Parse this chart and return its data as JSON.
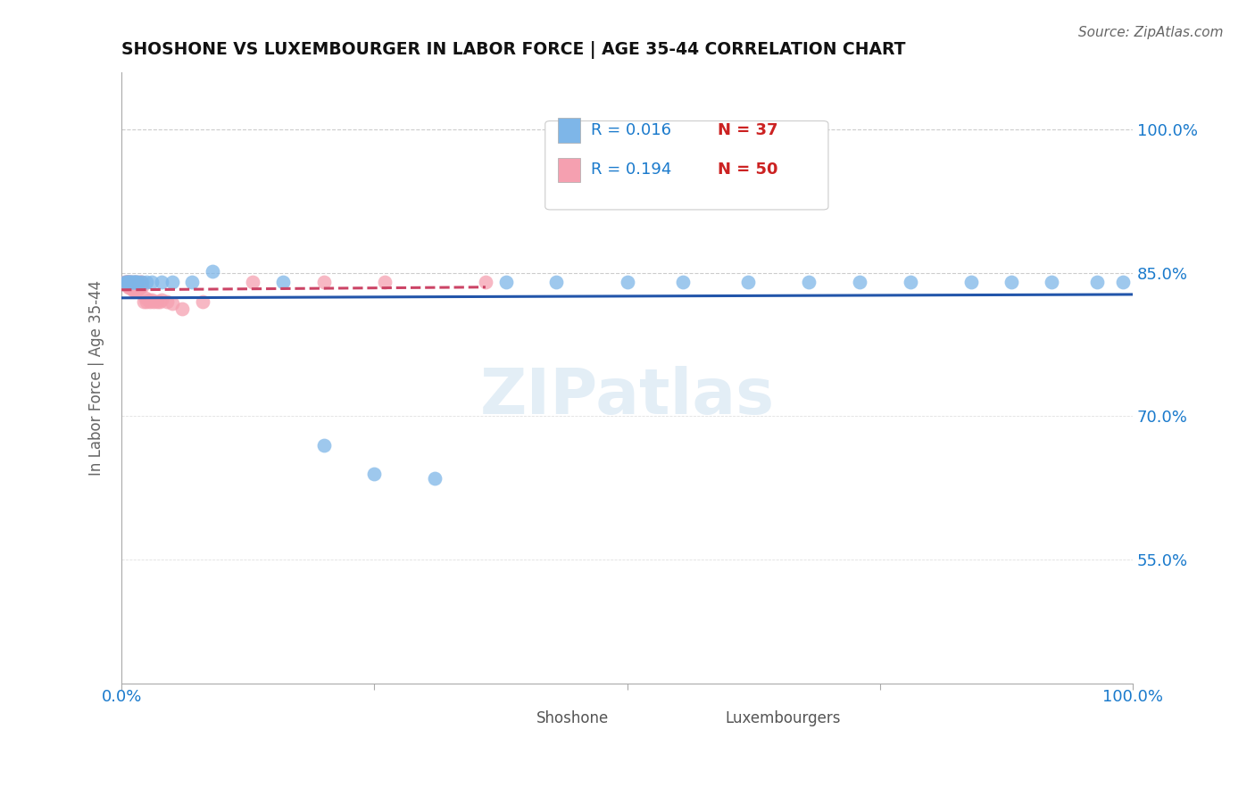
{
  "title": "SHOSHONE VS LUXEMBOURGER IN LABOR FORCE | AGE 35-44 CORRELATION CHART",
  "source_text": "Source: ZipAtlas.com",
  "ylabel": "In Labor Force | Age 35-44",
  "xlim": [
    0.0,
    1.0
  ],
  "ylim": [
    0.42,
    1.06
  ],
  "yticks": [
    0.55,
    0.7,
    0.85,
    1.0
  ],
  "ytick_labels": [
    "55.0%",
    "70.0%",
    "85.0%",
    "100.0%"
  ],
  "shoshone_R": 0.016,
  "shoshone_N": 37,
  "luxembourger_R": 0.194,
  "luxembourger_N": 50,
  "shoshone_color": "#7EB6E8",
  "luxembourger_color": "#F5A0B0",
  "trend_blue_color": "#2255AA",
  "trend_pink_color": "#CC4466",
  "background_color": "#ffffff",
  "shoshone_x": [
    0.003,
    0.005,
    0.006,
    0.007,
    0.008,
    0.009,
    0.01,
    0.011,
    0.012,
    0.013,
    0.014,
    0.015,
    0.017,
    0.02,
    0.025,
    0.03,
    0.04,
    0.05,
    0.09,
    0.16,
    0.2,
    0.25,
    0.31,
    0.38,
    0.43,
    0.5,
    0.555,
    0.62,
    0.68,
    0.73,
    0.78,
    0.84,
    0.88,
    0.92,
    0.965,
    0.99,
    0.07
  ],
  "shoshone_y": [
    0.84,
    0.84,
    0.84,
    0.84,
    0.84,
    0.84,
    0.84,
    0.84,
    0.84,
    0.84,
    0.84,
    0.84,
    0.84,
    0.84,
    0.84,
    0.84,
    0.84,
    0.84,
    0.852,
    0.84,
    0.67,
    0.64,
    0.635,
    0.84,
    0.84,
    0.84,
    0.84,
    0.84,
    0.84,
    0.84,
    0.84,
    0.84,
    0.84,
    0.84,
    0.84,
    0.84,
    0.84
  ],
  "luxembourger_x": [
    0.003,
    0.004,
    0.005,
    0.005,
    0.006,
    0.006,
    0.007,
    0.007,
    0.008,
    0.008,
    0.009,
    0.009,
    0.01,
    0.01,
    0.01,
    0.011,
    0.011,
    0.012,
    0.012,
    0.013,
    0.013,
    0.014,
    0.014,
    0.015,
    0.015,
    0.016,
    0.016,
    0.017,
    0.018,
    0.018,
    0.019,
    0.02,
    0.022,
    0.024,
    0.025,
    0.026,
    0.028,
    0.03,
    0.032,
    0.035,
    0.038,
    0.04,
    0.045,
    0.05,
    0.06,
    0.08,
    0.13,
    0.2,
    0.26,
    0.36
  ],
  "luxembourger_y": [
    0.84,
    0.84,
    0.84,
    0.84,
    0.84,
    0.838,
    0.84,
    0.835,
    0.838,
    0.835,
    0.84,
    0.836,
    0.84,
    0.838,
    0.835,
    0.835,
    0.832,
    0.836,
    0.832,
    0.84,
    0.838,
    0.836,
    0.831,
    0.84,
    0.833,
    0.832,
    0.838,
    0.834,
    0.84,
    0.835,
    0.84,
    0.836,
    0.82,
    0.824,
    0.82,
    0.822,
    0.82,
    0.822,
    0.82,
    0.82,
    0.82,
    0.822,
    0.82,
    0.818,
    0.812,
    0.82,
    0.84,
    0.84,
    0.84,
    0.84
  ],
  "marker_size": 130
}
